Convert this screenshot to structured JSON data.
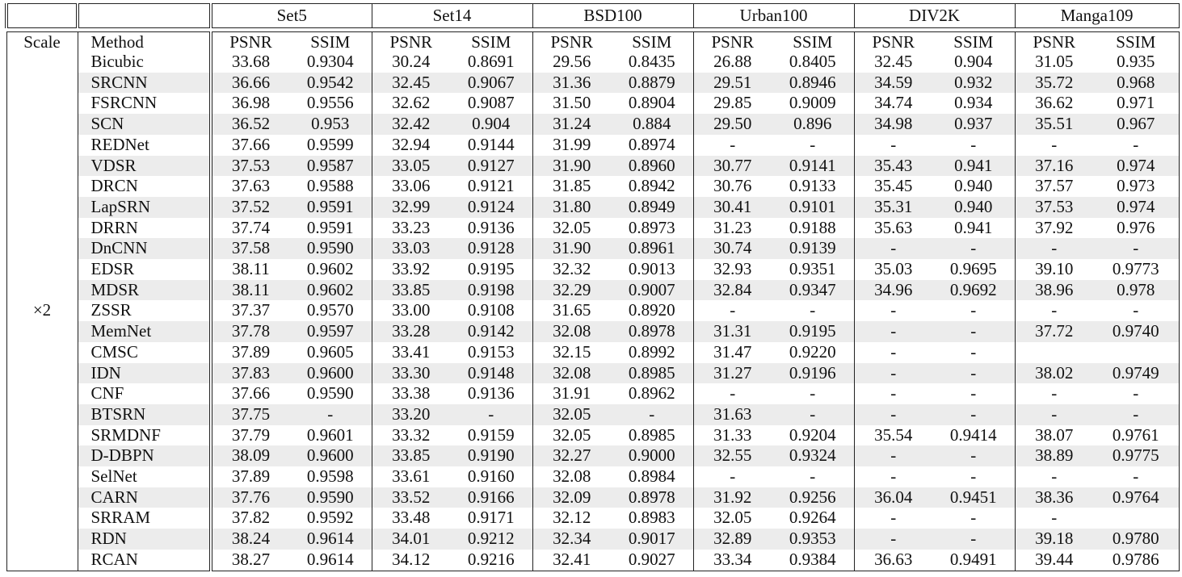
{
  "datasets": [
    "Set5",
    "Set14",
    "BSD100",
    "Urban100",
    "DIV2K",
    "Manga109"
  ],
  "header": {
    "scale": "Scale",
    "method": "Method",
    "psnr": "PSNR",
    "ssim": "SSIM"
  },
  "scale_label": "×2",
  "rows": [
    {
      "method": "Bicubic",
      "values": [
        "33.68",
        "0.9304",
        "30.24",
        "0.8691",
        "29.56",
        "0.8435",
        "26.88",
        "0.8405",
        "32.45",
        "0.904",
        "31.05",
        "0.935"
      ]
    },
    {
      "method": "SRCNN",
      "values": [
        "36.66",
        "0.9542",
        "32.45",
        "0.9067",
        "31.36",
        "0.8879",
        "29.51",
        "0.8946",
        "34.59",
        "0.932",
        "35.72",
        "0.968"
      ]
    },
    {
      "method": "FSRCNN",
      "values": [
        "36.98",
        "0.9556",
        "32.62",
        "0.9087",
        "31.50",
        "0.8904",
        "29.85",
        "0.9009",
        "34.74",
        "0.934",
        "36.62",
        "0.971"
      ]
    },
    {
      "method": "SCN",
      "values": [
        "36.52",
        "0.953",
        "32.42",
        "0.904",
        "31.24",
        "0.884",
        "29.50",
        "0.896",
        "34.98",
        "0.937",
        "35.51",
        "0.967"
      ]
    },
    {
      "method": "REDNet",
      "values": [
        "37.66",
        "0.9599",
        "32.94",
        "0.9144",
        "31.99",
        "0.8974",
        "-",
        "-",
        "-",
        "-",
        "-",
        "-"
      ]
    },
    {
      "method": "VDSR",
      "values": [
        "37.53",
        "0.9587",
        "33.05",
        "0.9127",
        "31.90",
        "0.8960",
        "30.77",
        "0.9141",
        "35.43",
        "0.941",
        "37.16",
        "0.974"
      ]
    },
    {
      "method": "DRCN",
      "values": [
        "37.63",
        "0.9588",
        "33.06",
        "0.9121",
        "31.85",
        "0.8942",
        "30.76",
        "0.9133",
        "35.45",
        "0.940",
        "37.57",
        "0.973"
      ]
    },
    {
      "method": "LapSRN",
      "values": [
        "37.52",
        "0.9591",
        "32.99",
        "0.9124",
        "31.80",
        "0.8949",
        "30.41",
        "0.9101",
        "35.31",
        "0.940",
        "37.53",
        "0.974"
      ]
    },
    {
      "method": "DRRN",
      "values": [
        "37.74",
        "0.9591",
        "33.23",
        "0.9136",
        "32.05",
        "0.8973",
        "31.23",
        "0.9188",
        "35.63",
        "0.941",
        "37.92",
        "0.976"
      ]
    },
    {
      "method": "DnCNN",
      "values": [
        "37.58",
        "0.9590",
        "33.03",
        "0.9128",
        "31.90",
        "0.8961",
        "30.74",
        "0.9139",
        "-",
        "-",
        "-",
        "-"
      ]
    },
    {
      "method": "EDSR",
      "values": [
        "38.11",
        "0.9602",
        "33.92",
        "0.9195",
        "32.32",
        "0.9013",
        "32.93",
        "0.9351",
        "35.03",
        "0.9695",
        "39.10",
        "0.9773"
      ]
    },
    {
      "method": "MDSR",
      "values": [
        "38.11",
        "0.9602",
        "33.85",
        "0.9198",
        "32.29",
        "0.9007",
        "32.84",
        "0.9347",
        "34.96",
        "0.9692",
        "38.96",
        "0.978"
      ]
    },
    {
      "method": "ZSSR",
      "values": [
        "37.37",
        "0.9570",
        "33.00",
        "0.9108",
        "31.65",
        "0.8920",
        "-",
        "-",
        "-",
        "-",
        "-",
        "-"
      ]
    },
    {
      "method": "MemNet",
      "values": [
        "37.78",
        "0.9597",
        "33.28",
        "0.9142",
        "32.08",
        "0.8978",
        "31.31",
        "0.9195",
        "-",
        "-",
        "37.72",
        "0.9740"
      ]
    },
    {
      "method": "CMSC",
      "values": [
        "37.89",
        "0.9605",
        "33.41",
        "0.9153",
        "32.15",
        "0.8992",
        "31.47",
        "0.9220",
        "-",
        "-",
        "",
        ""
      ]
    },
    {
      "method": "IDN",
      "values": [
        "37.83",
        "0.9600",
        "33.30",
        "0.9148",
        "32.08",
        "0.8985",
        "31.27",
        "0.9196",
        "-",
        "-",
        "38.02",
        "0.9749"
      ]
    },
    {
      "method": "CNF",
      "values": [
        "37.66",
        "0.9590",
        "33.38",
        "0.9136",
        "31.91",
        "0.8962",
        "-",
        "-",
        "-",
        "-",
        "-",
        "-"
      ]
    },
    {
      "method": "BTSRN",
      "values": [
        "37.75",
        "-",
        "33.20",
        "-",
        "32.05",
        "-",
        "31.63",
        "-",
        "-",
        "-",
        "-",
        "-"
      ]
    },
    {
      "method": "SRMDNF",
      "values": [
        "37.79",
        "0.9601",
        "33.32",
        "0.9159",
        "32.05",
        "0.8985",
        "31.33",
        "0.9204",
        "35.54",
        "0.9414",
        "38.07",
        "0.9761"
      ]
    },
    {
      "method": "D-DBPN",
      "values": [
        "38.09",
        "0.9600",
        "33.85",
        "0.9190",
        "32.27",
        "0.9000",
        "32.55",
        "0.9324",
        "-",
        "-",
        "38.89",
        "0.9775"
      ]
    },
    {
      "method": "SelNet",
      "values": [
        "37.89",
        "0.9598",
        "33.61",
        "0.9160",
        "32.08",
        "0.8984",
        "-",
        "-",
        "-",
        "-",
        "-",
        "-"
      ]
    },
    {
      "method": "CARN",
      "values": [
        "37.76",
        "0.9590",
        "33.52",
        "0.9166",
        "32.09",
        "0.8978",
        "31.92",
        "0.9256",
        "36.04",
        "0.9451",
        "38.36",
        "0.9764"
      ]
    },
    {
      "method": "SRRAM",
      "values": [
        "37.82",
        "0.9592",
        "33.48",
        "0.9171",
        "32.12",
        "0.8983",
        "32.05",
        "0.9264",
        "-",
        "-",
        "-",
        ""
      ]
    },
    {
      "method": "RDN",
      "values": [
        "38.24",
        "0.9614",
        "34.01",
        "0.9212",
        "32.34",
        "0.9017",
        "32.89",
        "0.9353",
        "-",
        "-",
        "39.18",
        "0.9780"
      ]
    },
    {
      "method": "RCAN",
      "values": [
        "38.27",
        "0.9614",
        "34.12",
        "0.9216",
        "32.41",
        "0.9027",
        "33.34",
        "0.9384",
        "36.63",
        "0.9491",
        "39.44",
        "0.9786"
      ]
    }
  ]
}
